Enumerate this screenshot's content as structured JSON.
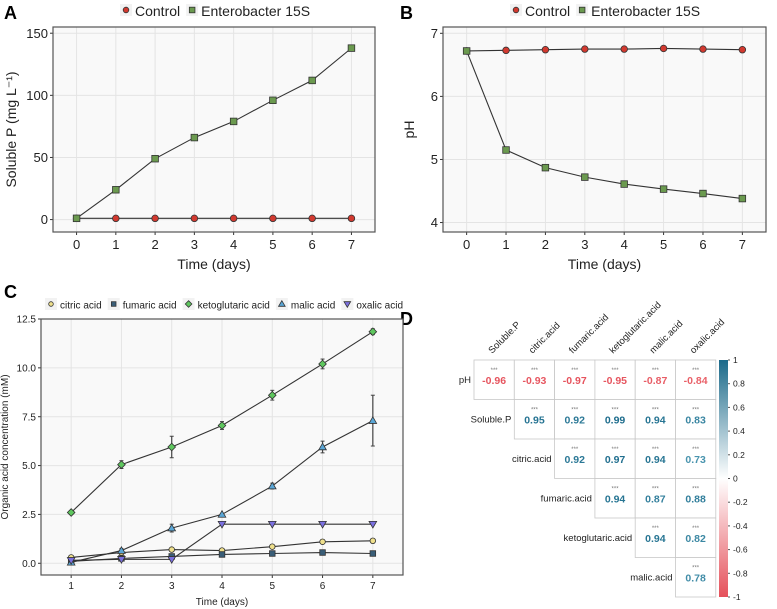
{
  "chart_data": [
    {
      "panel": "A",
      "type": "line",
      "xlabel": "Time (days)",
      "ylabel": "Soluble P (mg L⁻¹)",
      "x": [
        0,
        1,
        2,
        3,
        4,
        5,
        6,
        7
      ],
      "xticks": [
        "0",
        "1",
        "2",
        "3",
        "4",
        "5",
        "6",
        "7"
      ],
      "yticks": [
        "0",
        "50",
        "100",
        "150"
      ],
      "xlim": [
        -0.6,
        7.6
      ],
      "ylim": [
        -10,
        155
      ],
      "legend_position": "top",
      "series": [
        {
          "name": "Control",
          "marker": "circle",
          "color": "#d2392f",
          "values": [
            1,
            1,
            1,
            1,
            1,
            1,
            1,
            1
          ]
        },
        {
          "name": "Enterobacter 15S",
          "marker": "square",
          "color": "#6b9a4f",
          "values": [
            1,
            24,
            49,
            66,
            79,
            96,
            112,
            138
          ]
        }
      ]
    },
    {
      "panel": "B",
      "type": "line",
      "xlabel": "Time (days)",
      "ylabel": "pH",
      "x": [
        0,
        1,
        2,
        3,
        4,
        5,
        6,
        7
      ],
      "xticks": [
        "0",
        "1",
        "2",
        "3",
        "4",
        "5",
        "6",
        "7"
      ],
      "yticks": [
        "4",
        "5",
        "6",
        "7"
      ],
      "xlim": [
        -0.6,
        7.6
      ],
      "ylim": [
        3.85,
        7.1
      ],
      "legend_position": "top",
      "series": [
        {
          "name": "Control",
          "marker": "circle",
          "color": "#d2392f",
          "values": [
            6.72,
            6.73,
            6.74,
            6.75,
            6.75,
            6.76,
            6.75,
            6.74
          ]
        },
        {
          "name": "Enterobacter 15S",
          "marker": "square",
          "color": "#6b9a4f",
          "values": [
            6.72,
            5.15,
            4.87,
            4.72,
            4.61,
            4.53,
            4.46,
            4.38
          ]
        }
      ]
    },
    {
      "panel": "C",
      "type": "line",
      "xlabel": "Time (days)",
      "ylabel": "Organic acid concentration (mM)",
      "x": [
        1,
        2,
        3,
        4,
        5,
        6,
        7
      ],
      "xticks": [
        "1",
        "2",
        "3",
        "4",
        "5",
        "6",
        "7"
      ],
      "yticks": [
        "0.0",
        "2.5",
        "5.0",
        "7.5",
        "10.0",
        "12.5"
      ],
      "xlim": [
        0.4,
        7.6
      ],
      "ylim": [
        -0.6,
        12.5
      ],
      "legend_position": "top",
      "series": [
        {
          "name": "citric acid",
          "marker": "circle",
          "color": "#efe08c",
          "values": [
            0.3,
            0.55,
            0.7,
            0.65,
            0.85,
            1.1,
            1.15
          ],
          "errors": [
            0.05,
            0.05,
            0.05,
            0.05,
            0.05,
            0.05,
            0.05
          ]
        },
        {
          "name": "fumaric acid",
          "marker": "square",
          "color": "#3a5e78",
          "values": [
            0.1,
            0.25,
            0.35,
            0.45,
            0.5,
            0.55,
            0.5
          ],
          "errors": [
            0.02,
            0.02,
            0.02,
            0.02,
            0.02,
            0.02,
            0.02
          ]
        },
        {
          "name": "ketoglutaric acid",
          "marker": "diamond",
          "color": "#5ec65e",
          "values": [
            2.6,
            5.05,
            5.95,
            7.05,
            8.6,
            10.2,
            11.85
          ],
          "errors": [
            0.1,
            0.2,
            0.55,
            0.2,
            0.25,
            0.25,
            0.15
          ]
        },
        {
          "name": "malic acid",
          "marker": "triangle-up",
          "color": "#5aa6d6",
          "values": [
            0.05,
            0.65,
            1.8,
            2.5,
            3.95,
            5.95,
            7.3
          ],
          "errors": [
            0.02,
            0.1,
            0.2,
            0.05,
            0.15,
            0.3,
            1.3
          ]
        },
        {
          "name": "oxalic acid",
          "marker": "triangle-down",
          "color": "#7b70e0",
          "values": [
            0.15,
            0.2,
            0.2,
            2.0,
            2.0,
            2.0,
            2.0
          ],
          "errors": [
            0.02,
            0.02,
            0.02,
            0.02,
            0.02,
            0.02,
            0.02
          ]
        }
      ]
    },
    {
      "panel": "D",
      "type": "heatmap",
      "col_labels": [
        "Soluble.P",
        "citric.acid",
        "fumaric.acid",
        "ketoglutaric.acid",
        "malic.acid",
        "oxalic.acid"
      ],
      "row_labels": [
        "pH",
        "Soluble.P",
        "citric.acid",
        "fumaric.acid",
        "ketoglutaric.acid",
        "malic.acid"
      ],
      "significance": "***",
      "values": [
        [
          -0.96,
          -0.93,
          -0.97,
          -0.95,
          -0.87,
          -0.84
        ],
        [
          null,
          0.95,
          0.92,
          0.99,
          0.94,
          0.83
        ],
        [
          null,
          null,
          0.92,
          0.97,
          0.94,
          0.73
        ],
        [
          null,
          null,
          null,
          0.94,
          0.87,
          0.88
        ],
        [
          null,
          null,
          null,
          null,
          0.94,
          0.82
        ],
        [
          null,
          null,
          null,
          null,
          null,
          0.78
        ]
      ],
      "colorbar_ticks": [
        "1",
        "0.8",
        "0.6",
        "0.4",
        "0.2",
        "0",
        "-0.2",
        "-0.4",
        "-0.6",
        "-0.8",
        "-1"
      ],
      "colorbar_range": [
        -1,
        1
      ],
      "colors": {
        "positive": "#1b6a8a",
        "zero": "#ffffff",
        "negative": "#e5505a"
      }
    }
  ],
  "panel_labels": [
    "A",
    "B",
    "C",
    "D"
  ]
}
